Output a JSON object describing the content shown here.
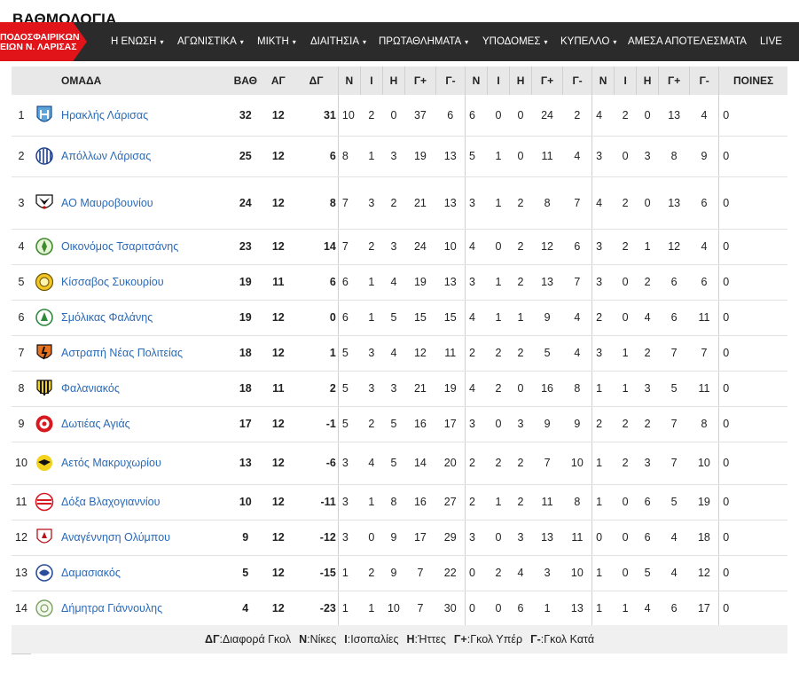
{
  "page_heading": "ΒΑΘΜΟΛΟΓΙΑ",
  "logo": {
    "line1": "ΠΟΔΟΣΦΑΙΡΙΚΩΝ",
    "line2": "ΕΙΩΝ Ν. ΛΑΡΙΣΑΣ"
  },
  "nav": {
    "items": [
      {
        "label": "Η ΕΝΩΣΗ",
        "dropdown": true
      },
      {
        "label": "ΑΓΩΝΙΣΤΙΚΑ",
        "dropdown": true
      },
      {
        "label": "ΜΙΚΤΗ",
        "dropdown": true
      },
      {
        "label": "ΔΙΑΙΤΗΣΙΑ",
        "dropdown": true
      },
      {
        "label": "ΠΡΩΤΑΘΛΗΜΑΤΑ",
        "dropdown": true
      },
      {
        "label": "ΥΠΟΔΟΜΕΣ",
        "dropdown": true
      },
      {
        "label": "ΚΥΠΕΛΛΟ",
        "dropdown": true
      },
      {
        "label": "ΑΜΕΣΑ ΑΠΟΤΕΛΕΣΜΑΤΑ",
        "dropdown": false
      },
      {
        "label": "LIVE",
        "dropdown": false
      }
    ],
    "caret": "▾"
  },
  "table": {
    "headers": [
      "ΟΜΑΔΑ",
      "ΒΑΘ",
      "ΑΓ",
      "ΔΓ",
      "Ν",
      "Ι",
      "Η",
      "Γ+",
      "Γ-",
      "Ν",
      "Ι",
      "Η",
      "Γ+",
      "Γ-",
      "Ν",
      "Ι",
      "Η",
      "Γ+",
      "Γ-",
      "ΠΟΙΝΕΣ"
    ],
    "rows": [
      {
        "pos": "1",
        "team": "Ηρακλής Λάρισας",
        "crest": "crest-blue-white",
        "cells": [
          "32",
          "12",
          "31",
          "10",
          "2",
          "0",
          "37",
          "6",
          "6",
          "0",
          "0",
          "24",
          "2",
          "4",
          "2",
          "0",
          "13",
          "4",
          "0"
        ]
      },
      {
        "pos": "2",
        "team": "Απόλλων Λάρισας",
        "crest": "crest-blue-stripes",
        "cells": [
          "25",
          "12",
          "6",
          "8",
          "1",
          "3",
          "19",
          "13",
          "5",
          "1",
          "0",
          "11",
          "4",
          "3",
          "0",
          "3",
          "8",
          "9",
          "0"
        ]
      },
      {
        "pos": "3",
        "team": "ΑΟ Μαυροβουνίου",
        "crest": "crest-black-bird",
        "cells": [
          "24",
          "12",
          "8",
          "7",
          "3",
          "2",
          "21",
          "13",
          "3",
          "1",
          "2",
          "8",
          "7",
          "4",
          "2",
          "0",
          "13",
          "6",
          "0"
        ]
      },
      {
        "pos": "4",
        "team": "Οικονόμος Τσαριτσάνης",
        "crest": "crest-green-round",
        "cells": [
          "23",
          "12",
          "14",
          "7",
          "2",
          "3",
          "24",
          "10",
          "4",
          "0",
          "2",
          "12",
          "6",
          "3",
          "2",
          "1",
          "12",
          "4",
          "0"
        ]
      },
      {
        "pos": "5",
        "team": "Κίσσαβος Συκουρίου",
        "crest": "crest-yellow-round",
        "cells": [
          "19",
          "11",
          "6",
          "6",
          "1",
          "4",
          "19",
          "13",
          "3",
          "1",
          "2",
          "13",
          "7",
          "3",
          "0",
          "2",
          "6",
          "6",
          "0"
        ]
      },
      {
        "pos": "6",
        "team": "Σμόλικας Φαλάνης",
        "crest": "crest-green-white",
        "cells": [
          "19",
          "12",
          "0",
          "6",
          "1",
          "5",
          "15",
          "15",
          "4",
          "1",
          "1",
          "9",
          "4",
          "2",
          "0",
          "4",
          "6",
          "11",
          "0"
        ]
      },
      {
        "pos": "7",
        "team": "Αστραπή Νέας Πολιτείας",
        "crest": "crest-orange-black",
        "cells": [
          "18",
          "12",
          "1",
          "5",
          "3",
          "4",
          "12",
          "11",
          "2",
          "2",
          "2",
          "5",
          "4",
          "3",
          "1",
          "2",
          "7",
          "7",
          "0"
        ]
      },
      {
        "pos": "8",
        "team": "Φαλανιακός",
        "crest": "crest-yellow-black-shield",
        "cells": [
          "18",
          "11",
          "2",
          "5",
          "3",
          "3",
          "21",
          "19",
          "4",
          "2",
          "0",
          "16",
          "8",
          "1",
          "1",
          "3",
          "5",
          "11",
          "0"
        ]
      },
      {
        "pos": "9",
        "team": "Δωτιέας Αγιάς",
        "crest": "crest-red-round",
        "cells": [
          "17",
          "12",
          "-1",
          "5",
          "2",
          "5",
          "16",
          "17",
          "3",
          "0",
          "3",
          "9",
          "9",
          "2",
          "2",
          "2",
          "7",
          "8",
          "0"
        ]
      },
      {
        "pos": "10",
        "team": "Αετός Μακρυχωρίου",
        "crest": "crest-yellow-eagle",
        "cells": [
          "13",
          "12",
          "-6",
          "3",
          "4",
          "5",
          "14",
          "20",
          "2",
          "2",
          "2",
          "7",
          "10",
          "1",
          "2",
          "3",
          "7",
          "10",
          "0"
        ]
      },
      {
        "pos": "11",
        "team": "Δόξα Βλαχογιαννίου",
        "crest": "crest-red-white-round",
        "cells": [
          "10",
          "12",
          "-11",
          "3",
          "1",
          "8",
          "16",
          "27",
          "2",
          "1",
          "2",
          "11",
          "8",
          "1",
          "0",
          "6",
          "5",
          "19",
          "0"
        ]
      },
      {
        "pos": "12",
        "team": "Αναγέννηση Ολύμπου",
        "crest": "crest-white-red-shield",
        "cells": [
          "9",
          "12",
          "-12",
          "3",
          "0",
          "9",
          "17",
          "29",
          "3",
          "0",
          "3",
          "13",
          "11",
          "0",
          "0",
          "6",
          "4",
          "18",
          "0"
        ]
      },
      {
        "pos": "13",
        "team": "Δαμασιακός",
        "crest": "crest-blue-round",
        "cells": [
          "5",
          "12",
          "-15",
          "1",
          "2",
          "9",
          "7",
          "22",
          "0",
          "2",
          "4",
          "3",
          "10",
          "1",
          "0",
          "5",
          "4",
          "12",
          "0"
        ]
      },
      {
        "pos": "14",
        "team": "Δήμητρα Γιάννουλης",
        "crest": "crest-green-outline",
        "cells": [
          "4",
          "12",
          "-23",
          "1",
          "1",
          "10",
          "7",
          "30",
          "0",
          "0",
          "6",
          "1",
          "13",
          "1",
          "1",
          "4",
          "6",
          "17",
          "0"
        ]
      }
    ]
  },
  "legend": [
    {
      "key": "ΔΓ",
      "text": ":Διαφορά Γκολ"
    },
    {
      "key": "Ν",
      "text": ":Νίκες"
    },
    {
      "key": "Ι",
      "text": ":Ισοπαλίες"
    },
    {
      "key": "Η",
      "text": ":Ήττες"
    },
    {
      "key": "Γ+",
      "text": ":Γκολ Υπέρ"
    },
    {
      "key": "Γ-",
      "text": ":Γκολ Κατά"
    }
  ],
  "colors": {
    "nav_bg": "#2b2b2b",
    "logo_red": "#e01419",
    "link_blue": "#2a6ab8",
    "header_bg": "#e8e8e8"
  }
}
